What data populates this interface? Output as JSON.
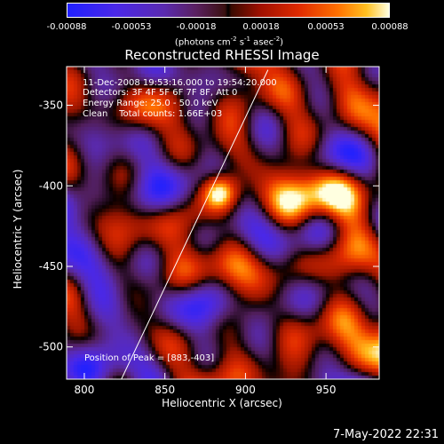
{
  "colorbar": {
    "ticks": [
      "-0.00088",
      "-0.00053",
      "-0.00018",
      "0.00018",
      "0.00053",
      "0.00088"
    ],
    "units_prefix": "(photons cm",
    "units_exp1": "-2",
    "units_mid": " s",
    "units_exp2": "-1",
    "units_mid2": " asec",
    "units_exp3": "-2",
    "units_suffix": ")"
  },
  "title": "Reconstructed RHESSI Image",
  "annotations": {
    "time_range": "11-Dec-2008 19:53:16.000 to 19:54:20.000",
    "detectors": "Detectors: 3F 4F 5F 6F 7F 8F, Att 0",
    "energy": "Energy Range: 25.0 - 50.0 keV",
    "algorithm": "Clean    Total counts: 1.66E+03",
    "peak": "Position of Peak = [883,-403]"
  },
  "footer_date": "7-May-2022 22:31",
  "chart_data": {
    "type": "heatmap",
    "title": "Reconstructed RHESSI Image",
    "xlabel": "Heliocentric X (arcsec)",
    "ylabel": "Heliocentric Y (arcsec)",
    "xlim": [
      789,
      983
    ],
    "ylim": [
      -520,
      -326
    ],
    "x_ticks": [
      "800",
      "850",
      "900",
      "950"
    ],
    "y_ticks": [
      "-350",
      "-400",
      "-450",
      "-500"
    ],
    "x_tick_values": [
      800,
      850,
      900,
      950
    ],
    "y_tick_values": [
      -350,
      -400,
      -450,
      -500
    ],
    "color_range": [
      -0.00088,
      0.00088
    ],
    "peak": [
      883,
      -403
    ],
    "limb_line": [
      [
        823,
        -520
      ],
      [
        914,
        -328
      ]
    ],
    "grid": false
  }
}
